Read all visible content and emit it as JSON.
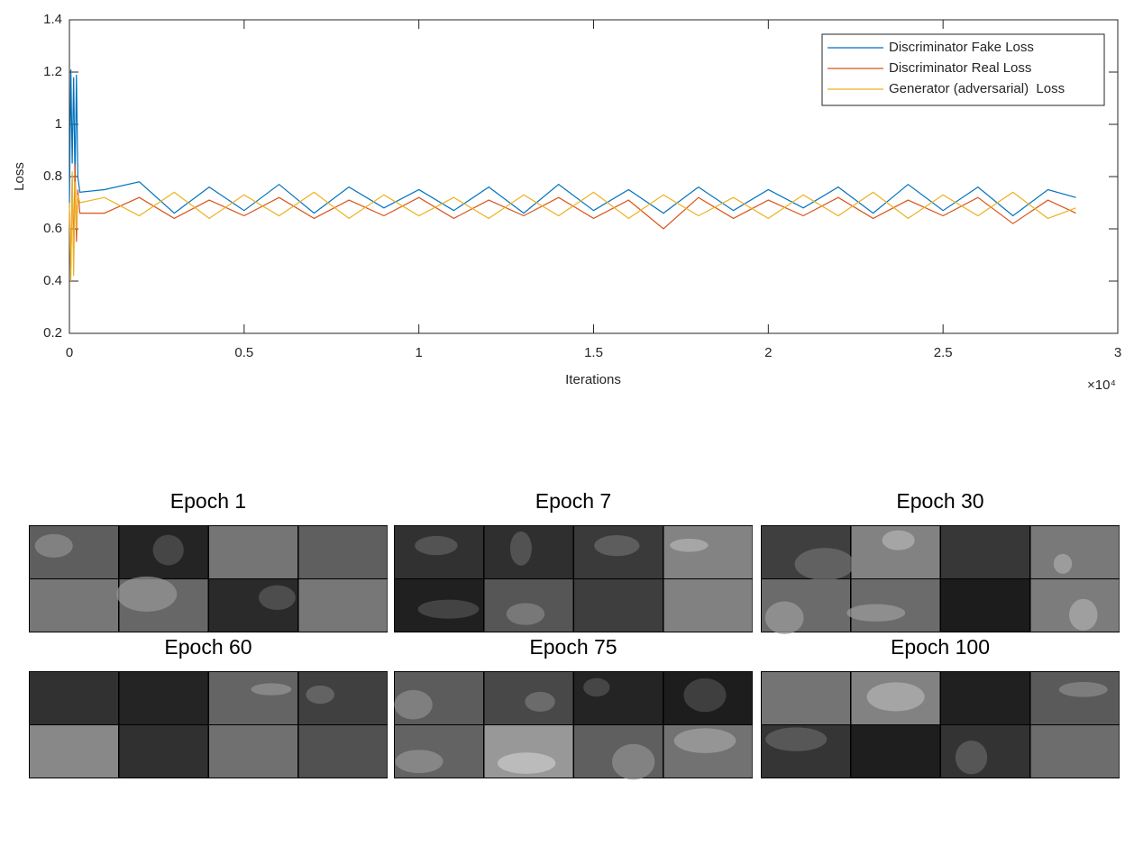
{
  "chart_data": {
    "type": "line",
    "y_label": "Loss",
    "x_label": "Iterations",
    "x_exponent_label": "×10⁴",
    "x": [
      0,
      40,
      80,
      120,
      160,
      200,
      240,
      300,
      1000,
      2000,
      3000,
      4000,
      5000,
      6000,
      7000,
      8000,
      9000,
      10000,
      11000,
      12000,
      13000,
      14000,
      15000,
      16000,
      17000,
      18000,
      19000,
      20000,
      21000,
      22000,
      23000,
      24000,
      25000,
      26000,
      27000,
      28000,
      28800
    ],
    "series": [
      {
        "name": "Discriminator Fake Loss",
        "color": "#0072bd",
        "values": [
          0.68,
          1.21,
          0.85,
          1.18,
          0.78,
          1.19,
          0.8,
          0.74,
          0.75,
          0.78,
          0.66,
          0.76,
          0.67,
          0.77,
          0.66,
          0.76,
          0.68,
          0.75,
          0.67,
          0.76,
          0.66,
          0.77,
          0.67,
          0.75,
          0.66,
          0.76,
          0.67,
          0.75,
          0.68,
          0.76,
          0.66,
          0.77,
          0.67,
          0.76,
          0.65,
          0.75,
          0.72
        ]
      },
      {
        "name": "Discriminator Real Loss",
        "color": "#d95319",
        "values": [
          0.66,
          0.45,
          0.8,
          0.5,
          0.85,
          0.55,
          0.75,
          0.66,
          0.66,
          0.72,
          0.64,
          0.71,
          0.65,
          0.72,
          0.64,
          0.71,
          0.65,
          0.72,
          0.64,
          0.71,
          0.65,
          0.72,
          0.64,
          0.71,
          0.6,
          0.72,
          0.64,
          0.71,
          0.65,
          0.72,
          0.64,
          0.71,
          0.65,
          0.72,
          0.62,
          0.71,
          0.66
        ]
      },
      {
        "name": "Generator (adversarial)  Loss",
        "color": "#edb120",
        "values": [
          0.7,
          0.4,
          0.82,
          0.42,
          0.78,
          0.6,
          0.73,
          0.7,
          0.72,
          0.65,
          0.74,
          0.64,
          0.73,
          0.65,
          0.74,
          0.64,
          0.73,
          0.65,
          0.72,
          0.64,
          0.73,
          0.65,
          0.74,
          0.64,
          0.73,
          0.65,
          0.72,
          0.64,
          0.73,
          0.65,
          0.74,
          0.64,
          0.73,
          0.65,
          0.74,
          0.64,
          0.68
        ]
      }
    ],
    "xlim": [
      0,
      30000
    ],
    "xticks": [
      0,
      {
        "value": 5000,
        "label": "0.5"
      },
      {
        "value": 10000,
        "label": "1"
      },
      {
        "value": 15000,
        "label": "1.5"
      },
      {
        "value": 20000,
        "label": "2"
      },
      {
        "value": 25000,
        "label": "2.5"
      },
      {
        "value": 30000,
        "label": "3"
      }
    ],
    "ylim": [
      0.2,
      1.4
    ],
    "yticks": [
      0.2,
      0.4,
      0.6,
      0.8,
      1,
      1.2,
      1.4
    ],
    "legend": "top-right"
  },
  "panels": [
    {
      "title": "Epoch 1"
    },
    {
      "title": "Epoch 7"
    },
    {
      "title": "Epoch 30"
    },
    {
      "title": "Epoch 60"
    },
    {
      "title": "Epoch 75"
    },
    {
      "title": "Epoch 100"
    }
  ]
}
